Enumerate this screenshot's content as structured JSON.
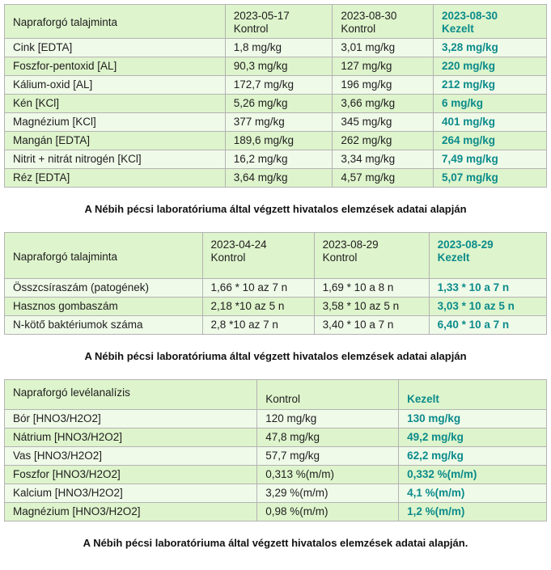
{
  "colors": {
    "accent_teal": "#0b8b8b",
    "row_light": "#f0fae9",
    "row_dark": "#def4cc",
    "border_gray": "#b3b3b3",
    "text": "#202020"
  },
  "captions": [
    "A Nébih pécsi laboratóriuma által végzett hivatalos elemzések adatai alapján",
    "A Nébih pécsi laboratóriuma által végzett hivatalos elemzések adatai alapján",
    "A Nébih pécsi laboratóriuma által végzett hivatalos elemzések adatai alapján."
  ],
  "tables": [
    {
      "title": "Napraforgó talajminta",
      "header": [
        {
          "lines": [
            "Napraforgó talajminta"
          ]
        },
        {
          "lines": [
            "2023-05-17",
            "Kontrol"
          ]
        },
        {
          "lines": [
            "2023-08-30",
            "Kontrol"
          ]
        },
        {
          "lines": [
            "2023-08-30",
            "Kezelt"
          ],
          "treated": true
        }
      ],
      "rows": [
        [
          "Cink [EDTA]",
          "1,8 mg/kg",
          "3,01 mg/kg",
          "3,28 mg/kg"
        ],
        [
          "Foszfor-pentoxid [AL]",
          "90,3 mg/kg",
          "127 mg/kg",
          "220 mg/kg"
        ],
        [
          "Kálium-oxid [AL]",
          "172,7 mg/kg",
          "196 mg/kg",
          "212 mg/kg"
        ],
        [
          "Kén [KCl]",
          "5,26 mg/kg",
          "3,66 mg/kg",
          "6 mg/kg"
        ],
        [
          "Magnézium [KCl]",
          "377 mg/kg",
          "345 mg/kg",
          "401 mg/kg"
        ],
        [
          "Mangán [EDTA]",
          "189,6 mg/kg",
          "262 mg/kg",
          "264 mg/kg"
        ],
        [
          "Nitrit + nitrát nitrogén [KCl]",
          "16,2 mg/kg",
          "3,34 mg/kg",
          "7,49 mg/kg"
        ],
        [
          "Réz [EDTA]",
          "3,64 mg/kg",
          "4,57 mg/kg",
          "5,07 mg/kg"
        ]
      ]
    },
    {
      "title": "Napraforgó talajminta",
      "header": [
        {
          "lines": [
            "Napraforgó talajminta"
          ]
        },
        {
          "lines": [
            "2023-04-24",
            "Kontrol"
          ]
        },
        {
          "lines": [
            "2023-08-29",
            "Kontrol"
          ]
        },
        {
          "lines": [
            "2023-08-29",
            "Kezelt"
          ],
          "treated": true
        }
      ],
      "rows": [
        [
          "Összcsíraszám (patogének)",
          "1,66 * 10 az 7 n",
          "1,69 * 10 a 8 n",
          "1,33 * 10 a 7 n"
        ],
        [
          "Hasznos gombaszám",
          "2,18 *10 az 5 n",
          "3,58 * 10 az 5 n",
          "3,03 * 10 az 5 n"
        ],
        [
          "N-kötő baktériumok száma",
          "2,8 *10 az 7 n",
          "3,40 * 10 a 7 n",
          "6,40 * 10 a 7 n"
        ]
      ]
    },
    {
      "title": "Napraforgó levélanalízis",
      "header": [
        {
          "lines": [
            "Napraforgó levélanalízis"
          ]
        },
        {
          "lines": [
            "Kontrol"
          ]
        },
        {
          "lines": [
            "Kezelt"
          ],
          "treated": true
        }
      ],
      "rows": [
        [
          "Bór [HNO3/H2O2]",
          "120 mg/kg",
          "130 mg/kg"
        ],
        [
          "Nátrium [HNO3/H2O2]",
          "47,8 mg/kg",
          "49,2 mg/kg"
        ],
        [
          "Vas [HNO3/H2O2]",
          "57,7 mg/kg",
          "62,2 mg/kg"
        ],
        [
          "Foszfor [HNO3/H2O2]",
          "0,313 %(m/m)",
          "0,332 %(m/m)"
        ],
        [
          "Kalcium [HNO3/H2O2]",
          "3,29 %(m/m)",
          "4,1 %(m/m)"
        ],
        [
          "Magnézium [HNO3/H2O2]",
          "0,98 %(m/m)",
          "1,2 %(m/m)"
        ]
      ]
    }
  ]
}
